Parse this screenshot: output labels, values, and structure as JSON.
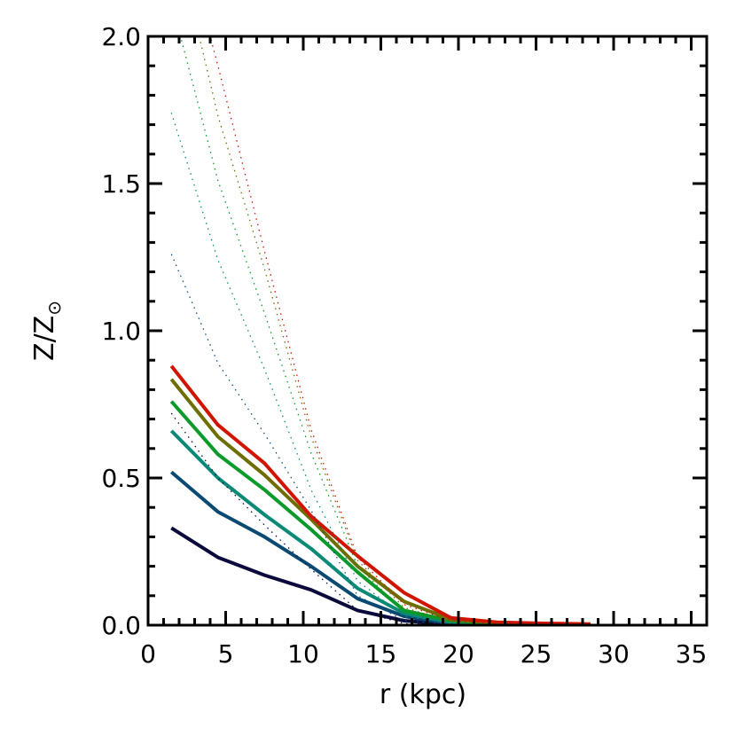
{
  "chart_data": {
    "type": "line",
    "title": "",
    "xlabel": "r (kpc)",
    "ylabel_main": "Z/Z",
    "ylabel_sub": "⊙",
    "xlim": [
      0,
      36
    ],
    "ylim": [
      0,
      2.0
    ],
    "x_ticks": [
      0,
      5,
      10,
      15,
      20,
      25,
      30,
      35
    ],
    "x_tick_labels": [
      "0",
      "5",
      "10",
      "15",
      "20",
      "25",
      "30",
      "35"
    ],
    "y_ticks": [
      0,
      0.5,
      1.0,
      1.5,
      2.0
    ],
    "y_tick_labels": [
      "0.0",
      "0.5",
      "1.0",
      "1.5",
      "2.0"
    ],
    "x_minor_step": 1,
    "y_minor_step": 0.1,
    "grid": false,
    "x": [
      1.5,
      4.5,
      7.5,
      10.5,
      13.5,
      16.5,
      19.5,
      22.5,
      25.5,
      28.5
    ],
    "series": [
      {
        "style": "solid",
        "color": "#0a0a3c",
        "values": [
          0.33,
          0.23,
          0.17,
          0.12,
          0.05,
          0.015,
          0.003,
          0.002,
          0.001,
          0.001
        ]
      },
      {
        "style": "solid",
        "color": "#0a4a72",
        "values": [
          0.52,
          0.385,
          0.3,
          0.2,
          0.09,
          0.03,
          0.006,
          0.003,
          0.002,
          0.001
        ]
      },
      {
        "style": "solid",
        "color": "#0a8a76",
        "values": [
          0.66,
          0.5,
          0.375,
          0.26,
          0.125,
          0.04,
          0.01,
          0.004,
          0.002,
          0.001
        ]
      },
      {
        "style": "solid",
        "color": "#0a9a2a",
        "values": [
          0.76,
          0.58,
          0.46,
          0.325,
          0.18,
          0.05,
          0.015,
          0.005,
          0.003,
          0.002
        ]
      },
      {
        "style": "solid",
        "color": "#6e6e00",
        "values": [
          0.835,
          0.64,
          0.51,
          0.36,
          0.2,
          0.08,
          0.02,
          0.007,
          0.004,
          0.003
        ]
      },
      {
        "style": "solid",
        "color": "#d01400",
        "values": [
          0.88,
          0.68,
          0.55,
          0.37,
          0.235,
          0.11,
          0.025,
          0.01,
          0.006,
          0.004
        ]
      },
      {
        "style": "dotted",
        "color": "#0a0a3c",
        "values": [
          0.72,
          0.5,
          0.34,
          0.19,
          0.05,
          0.005,
          0.001,
          0.001,
          0.001,
          0.001
        ]
      },
      {
        "style": "dotted",
        "color": "#0a4a72",
        "values": [
          1.26,
          0.89,
          0.65,
          0.39,
          0.1,
          0.015,
          0.004,
          0.002,
          0.001,
          0.001
        ]
      },
      {
        "style": "dotted",
        "color": "#0a8a76",
        "values": [
          1.74,
          1.24,
          0.87,
          0.46,
          0.15,
          0.03,
          0.008,
          0.003,
          0.002,
          0.001
        ]
      },
      {
        "style": "dotted",
        "color": "#0a9a2a",
        "values": [
          2.12,
          1.51,
          1.06,
          0.585,
          0.2,
          0.045,
          0.01,
          0.004,
          0.002,
          0.001
        ]
      },
      {
        "style": "dotted",
        "color": "#6e6e00",
        "values": [
          2.4,
          1.73,
          1.21,
          0.64,
          0.22,
          0.06,
          0.012,
          0.005,
          0.003,
          0.002
        ]
      },
      {
        "style": "dotted",
        "color": "#d01400",
        "values": [
          2.5,
          1.9,
          1.27,
          0.665,
          0.23,
          0.07,
          0.015,
          0.005,
          0.003,
          0.002
        ]
      }
    ]
  }
}
